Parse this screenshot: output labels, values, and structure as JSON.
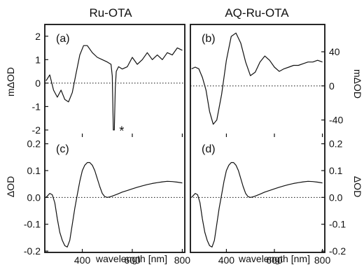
{
  "chart_data": [
    {
      "type": "line",
      "panel_label": "(a)",
      "column_title": "Ru-OTA",
      "ylabel": "mΔOD",
      "xlabel": "",
      "xlim": [
        250,
        810
      ],
      "ylim": [
        -2.3,
        2.5
      ],
      "y_ticks": [
        "2",
        "1",
        "0",
        "-1",
        "-2"
      ],
      "y_tick_values": [
        2,
        1,
        0,
        -1,
        -2
      ],
      "zero_line": true,
      "annotation": "*",
      "series": [
        {
          "x": [
            255,
            270,
            285,
            300,
            315,
            330,
            345,
            360,
            375,
            390,
            405,
            420,
            440,
            460,
            480,
            500,
            515,
            520,
            524,
            528,
            532,
            536,
            545,
            560,
            580,
            600,
            620,
            640,
            660,
            680,
            700,
            720,
            740,
            760,
            780,
            800
          ],
          "y": [
            0.1,
            0.35,
            -0.3,
            -0.6,
            -0.3,
            -0.7,
            -0.8,
            -0.4,
            0.4,
            1.2,
            1.6,
            1.6,
            1.3,
            1.1,
            1.0,
            0.9,
            0.8,
            0.3,
            -2.0,
            -2.0,
            -0.2,
            0.5,
            0.7,
            0.6,
            0.7,
            1.1,
            0.8,
            1.0,
            1.3,
            1.0,
            1.2,
            1.0,
            1.3,
            1.2,
            1.5,
            1.4
          ]
        }
      ]
    },
    {
      "type": "line",
      "panel_label": "(b)",
      "column_title": "AQ-Ru-OTA",
      "ylabel": "mΔOD",
      "xlabel": "",
      "xlim": [
        250,
        810
      ],
      "ylim": [
        -60,
        72
      ],
      "y_ticks": [
        "40",
        "0",
        "-40"
      ],
      "y_tick_values": [
        40,
        0,
        -40
      ],
      "zero_line": true,
      "series": [
        {
          "x": [
            255,
            270,
            285,
            300,
            315,
            330,
            345,
            360,
            380,
            400,
            420,
            440,
            460,
            480,
            500,
            520,
            540,
            560,
            580,
            600,
            620,
            640,
            660,
            680,
            700,
            720,
            740,
            760,
            780,
            800
          ],
          "y": [
            20,
            22,
            20,
            10,
            -5,
            -30,
            -45,
            -40,
            -10,
            30,
            58,
            62,
            50,
            28,
            12,
            16,
            28,
            35,
            30,
            22,
            17,
            20,
            22,
            24,
            24,
            26,
            28,
            28,
            30,
            28
          ]
        }
      ]
    },
    {
      "type": "line",
      "panel_label": "(c)",
      "ylabel": "ΔOD",
      "xlabel": "wavelength [nm]",
      "xlim": [
        250,
        810
      ],
      "ylim": [
        -0.205,
        0.225
      ],
      "x_ticks": [
        "400",
        "600",
        "800"
      ],
      "x_tick_values": [
        400,
        600,
        800
      ],
      "y_ticks": [
        "0.2",
        "0.1",
        "0.0",
        "-0.1",
        "-0.2"
      ],
      "y_tick_values": [
        0.2,
        0.1,
        0.0,
        -0.1,
        -0.2
      ],
      "zero_line": true,
      "series": [
        {
          "x": [
            255,
            270,
            280,
            290,
            300,
            310,
            320,
            330,
            340,
            350,
            360,
            370,
            380,
            390,
            400,
            410,
            420,
            430,
            440,
            450,
            460,
            470,
            480,
            490,
            500,
            510,
            520,
            540,
            560,
            580,
            600,
            620,
            640,
            660,
            680,
            700,
            720,
            740,
            760,
            780,
            800
          ],
          "y": [
            0.0,
            0.015,
            0.01,
            -0.02,
            -0.08,
            -0.13,
            -0.16,
            -0.18,
            -0.185,
            -0.16,
            -0.1,
            -0.04,
            0.01,
            0.06,
            0.1,
            0.12,
            0.13,
            0.13,
            0.12,
            0.1,
            0.07,
            0.04,
            0.015,
            0.003,
            0.0,
            0.002,
            0.005,
            0.012,
            0.02,
            0.026,
            0.032,
            0.038,
            0.043,
            0.048,
            0.052,
            0.055,
            0.058,
            0.06,
            0.059,
            0.057,
            0.054
          ]
        }
      ]
    },
    {
      "type": "line",
      "panel_label": "(d)",
      "ylabel": "ΔOD",
      "xlabel": "wavelength [nm]",
      "xlim": [
        250,
        810
      ],
      "ylim": [
        -0.205,
        0.225
      ],
      "x_ticks": [
        "400",
        "600",
        "800"
      ],
      "x_tick_values": [
        400,
        600,
        800
      ],
      "y_ticks": [
        "0.2",
        "0.1",
        "0.0",
        "-0.1",
        "-0.2"
      ],
      "y_tick_values": [
        0.2,
        0.1,
        0.0,
        -0.1,
        -0.2
      ],
      "zero_line": true,
      "series": [
        {
          "x": [
            255,
            270,
            280,
            290,
            300,
            310,
            320,
            330,
            340,
            350,
            360,
            370,
            380,
            390,
            400,
            410,
            420,
            430,
            440,
            450,
            460,
            470,
            480,
            490,
            500,
            510,
            520,
            540,
            560,
            580,
            600,
            620,
            640,
            660,
            680,
            700,
            720,
            740,
            760,
            780,
            800
          ],
          "y": [
            0.0,
            0.015,
            0.01,
            -0.02,
            -0.08,
            -0.13,
            -0.16,
            -0.18,
            -0.185,
            -0.16,
            -0.1,
            -0.04,
            0.01,
            0.06,
            0.1,
            0.12,
            0.13,
            0.13,
            0.12,
            0.1,
            0.07,
            0.04,
            0.015,
            0.003,
            0.0,
            0.002,
            0.005,
            0.012,
            0.02,
            0.026,
            0.032,
            0.038,
            0.043,
            0.048,
            0.052,
            0.055,
            0.058,
            0.06,
            0.059,
            0.057,
            0.054
          ]
        }
      ]
    }
  ]
}
